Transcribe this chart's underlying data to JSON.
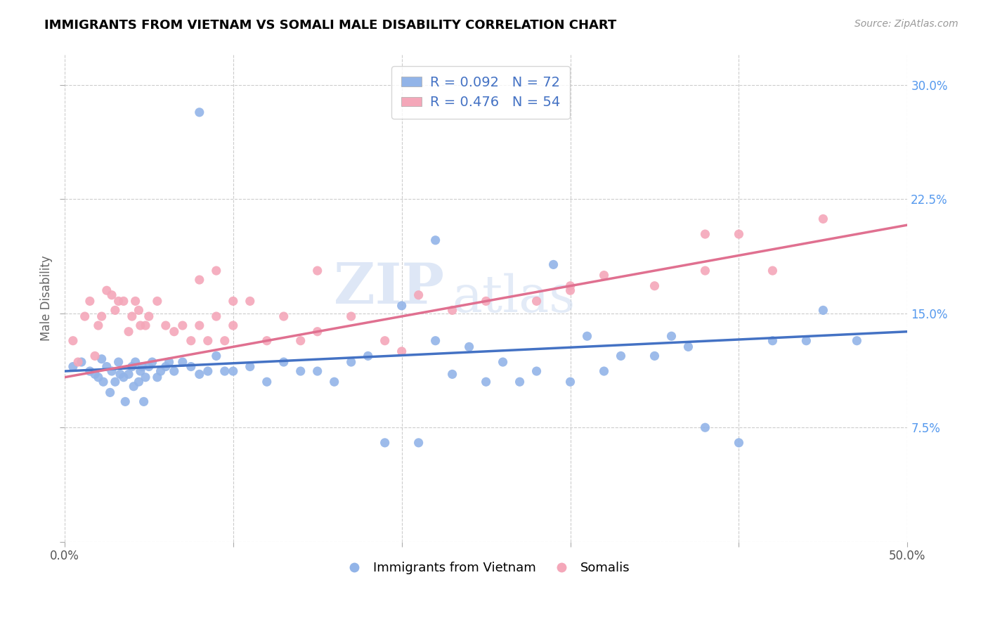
{
  "title": "IMMIGRANTS FROM VIETNAM VS SOMALI MALE DISABILITY CORRELATION CHART",
  "source": "Source: ZipAtlas.com",
  "ylabel": "Male Disability",
  "yticks": [
    0.0,
    0.075,
    0.15,
    0.225,
    0.3
  ],
  "ytick_labels": [
    "",
    "7.5%",
    "15.0%",
    "22.5%",
    "30.0%"
  ],
  "xticks": [
    0.0,
    0.1,
    0.2,
    0.3,
    0.4,
    0.5
  ],
  "xtick_labels_show": [
    "0.0%",
    "",
    "",
    "",
    "",
    "50.0%"
  ],
  "xlim": [
    0.0,
    0.5
  ],
  "ylim": [
    0.0,
    0.32
  ],
  "legend_label1": "Immigrants from Vietnam",
  "legend_label2": "Somalis",
  "color_vietnam": "#92b4e8",
  "color_somali": "#f4a7b9",
  "color_trendline_vietnam": "#4472c4",
  "color_trendline_somali": "#e07090",
  "watermark_zip": "ZIP",
  "watermark_atlas": "atlas",
  "vietnam_x": [
    0.005,
    0.01,
    0.015,
    0.018,
    0.02,
    0.022,
    0.023,
    0.025,
    0.027,
    0.028,
    0.03,
    0.032,
    0.033,
    0.035,
    0.036,
    0.038,
    0.04,
    0.041,
    0.042,
    0.044,
    0.045,
    0.046,
    0.047,
    0.048,
    0.05,
    0.052,
    0.055,
    0.057,
    0.06,
    0.062,
    0.065,
    0.07,
    0.075,
    0.08,
    0.085,
    0.09,
    0.095,
    0.1,
    0.11,
    0.12,
    0.13,
    0.14,
    0.15,
    0.16,
    0.17,
    0.18,
    0.2,
    0.22,
    0.24,
    0.25,
    0.27,
    0.28,
    0.3,
    0.32,
    0.33,
    0.35,
    0.37,
    0.38,
    0.4,
    0.42,
    0.44,
    0.45,
    0.47,
    0.23,
    0.26,
    0.19,
    0.21,
    0.08,
    0.22,
    0.29,
    0.31,
    0.36
  ],
  "vietnam_y": [
    0.115,
    0.118,
    0.112,
    0.11,
    0.108,
    0.12,
    0.105,
    0.115,
    0.098,
    0.112,
    0.105,
    0.118,
    0.11,
    0.108,
    0.092,
    0.11,
    0.115,
    0.102,
    0.118,
    0.105,
    0.112,
    0.115,
    0.092,
    0.108,
    0.115,
    0.118,
    0.108,
    0.112,
    0.115,
    0.118,
    0.112,
    0.118,
    0.115,
    0.11,
    0.112,
    0.122,
    0.112,
    0.112,
    0.115,
    0.105,
    0.118,
    0.112,
    0.112,
    0.105,
    0.118,
    0.122,
    0.155,
    0.132,
    0.128,
    0.105,
    0.105,
    0.112,
    0.105,
    0.112,
    0.122,
    0.122,
    0.128,
    0.075,
    0.065,
    0.132,
    0.132,
    0.152,
    0.132,
    0.11,
    0.118,
    0.065,
    0.065,
    0.282,
    0.198,
    0.182,
    0.135,
    0.135
  ],
  "somali_x": [
    0.005,
    0.008,
    0.012,
    0.015,
    0.018,
    0.02,
    0.022,
    0.025,
    0.028,
    0.03,
    0.032,
    0.035,
    0.038,
    0.04,
    0.042,
    0.044,
    0.045,
    0.048,
    0.05,
    0.055,
    0.06,
    0.065,
    0.07,
    0.075,
    0.08,
    0.085,
    0.09,
    0.095,
    0.1,
    0.11,
    0.12,
    0.13,
    0.14,
    0.15,
    0.17,
    0.19,
    0.21,
    0.23,
    0.25,
    0.28,
    0.3,
    0.32,
    0.35,
    0.38,
    0.4,
    0.08,
    0.09,
    0.1,
    0.15,
    0.2,
    0.3,
    0.38,
    0.42,
    0.45
  ],
  "somali_y": [
    0.132,
    0.118,
    0.148,
    0.158,
    0.122,
    0.142,
    0.148,
    0.165,
    0.162,
    0.152,
    0.158,
    0.158,
    0.138,
    0.148,
    0.158,
    0.152,
    0.142,
    0.142,
    0.148,
    0.158,
    0.142,
    0.138,
    0.142,
    0.132,
    0.142,
    0.132,
    0.148,
    0.132,
    0.142,
    0.158,
    0.132,
    0.148,
    0.132,
    0.138,
    0.148,
    0.132,
    0.162,
    0.152,
    0.158,
    0.158,
    0.165,
    0.175,
    0.168,
    0.178,
    0.202,
    0.172,
    0.178,
    0.158,
    0.178,
    0.125,
    0.168,
    0.202,
    0.178,
    0.212
  ],
  "trendline_vietnam_x0": 0.0,
  "trendline_vietnam_x1": 0.5,
  "trendline_vietnam_y0": 0.112,
  "trendline_vietnam_y1": 0.138,
  "trendline_somali_x0": 0.0,
  "trendline_somali_x1": 0.5,
  "trendline_somali_y0": 0.108,
  "trendline_somali_y1": 0.208
}
